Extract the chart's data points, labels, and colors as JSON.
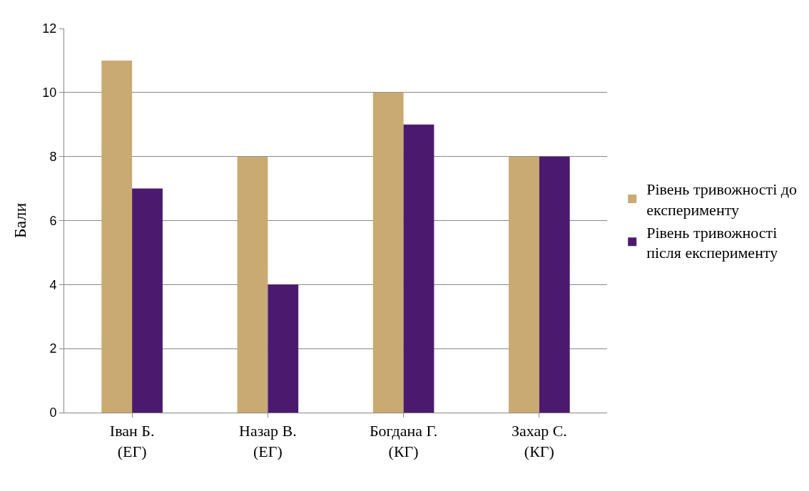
{
  "chart_data": {
    "type": "bar",
    "ylabel": "Бали",
    "categories": [
      "Іван Б.\n(ЕГ)",
      "Назар В.\n(ЕГ)",
      "Богдана Г.\n(КГ)",
      "Захар С.\n(КГ)"
    ],
    "series": [
      {
        "name": "Рівень тривожності до експерименту",
        "color": "#c9aa72",
        "values": [
          11,
          8,
          10,
          8
        ]
      },
      {
        "name": "Рівень тривожності після експерименту",
        "color": "#4b1a6e",
        "values": [
          7,
          4,
          9,
          8
        ]
      }
    ],
    "ylim": [
      0,
      12
    ],
    "yticks": [
      0,
      2,
      4,
      6,
      8,
      10,
      12
    ],
    "grid": "y",
    "legend": "right"
  }
}
